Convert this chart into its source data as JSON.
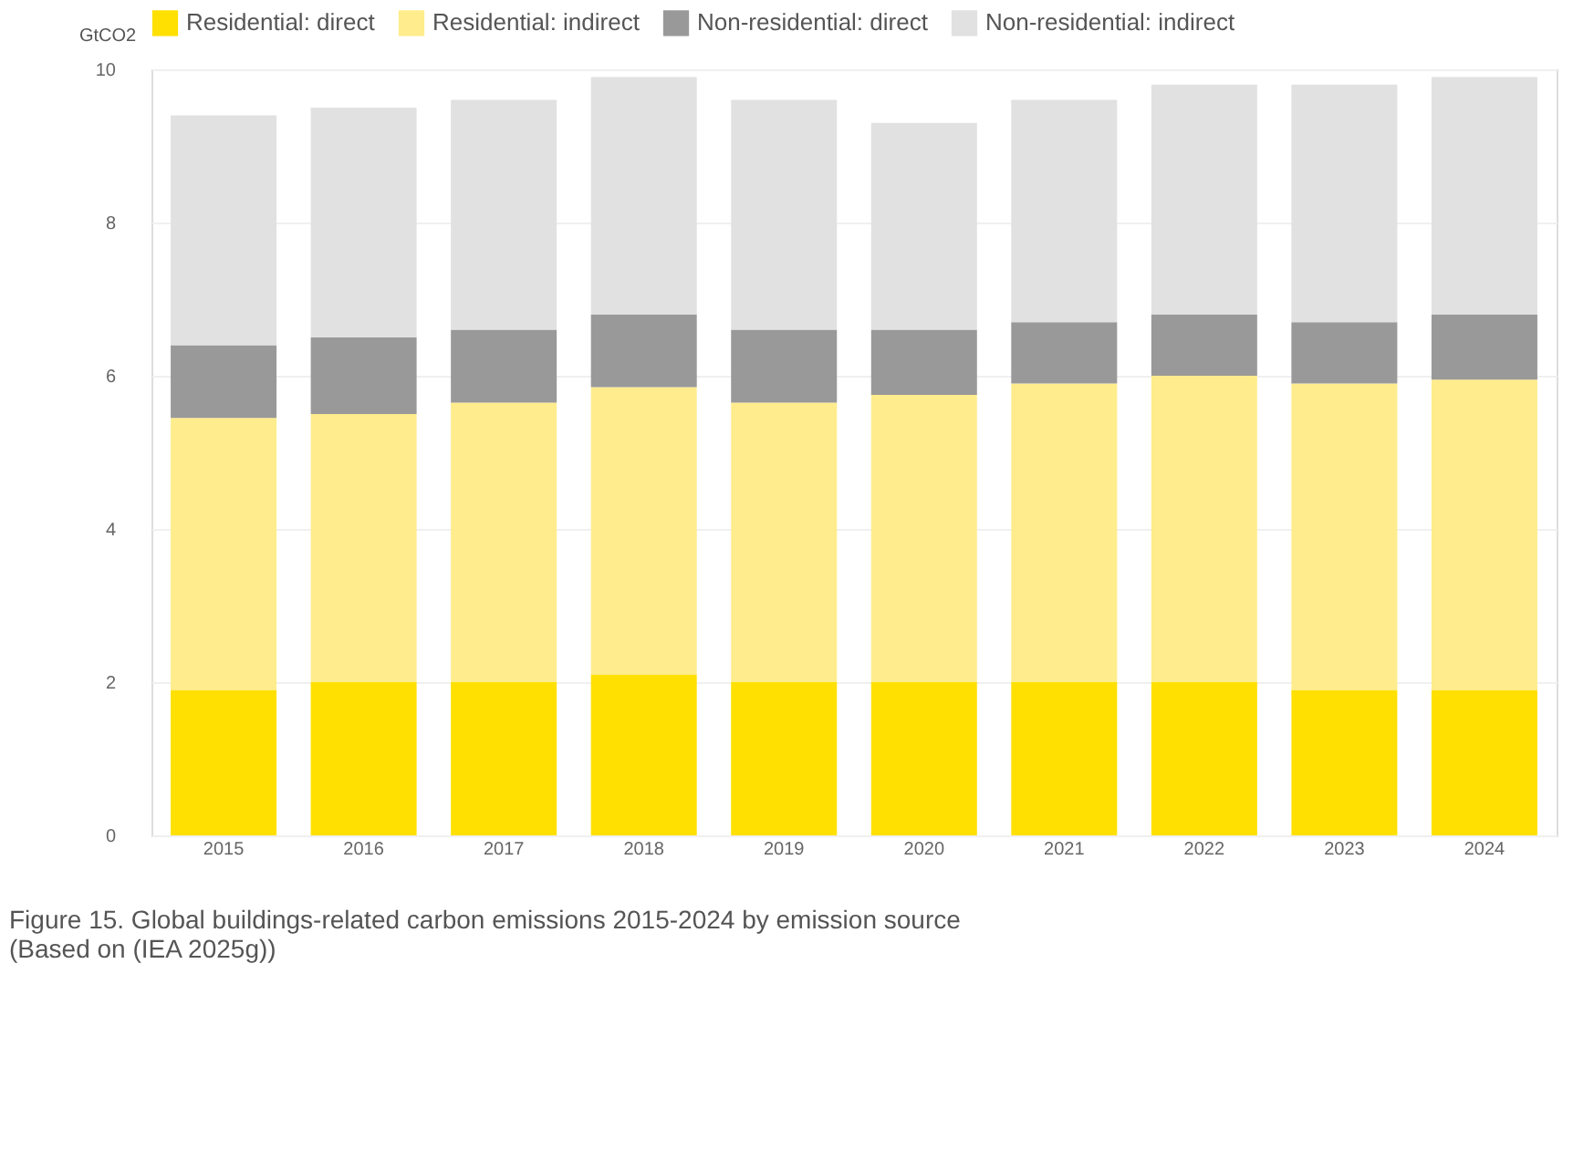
{
  "chart_data": {
    "type": "bar",
    "stacked": true,
    "ylabel": "GtCO2",
    "categories": [
      "2015",
      "2016",
      "2017",
      "2018",
      "2019",
      "2020",
      "2021",
      "2022",
      "2023",
      "2024"
    ],
    "series": [
      {
        "name": "Residential: direct",
        "color": "#ffe000",
        "values": [
          1.9,
          2.0,
          2.0,
          2.1,
          2.0,
          2.0,
          2.0,
          2.0,
          1.9,
          1.9
        ]
      },
      {
        "name": "Residential: indirect",
        "color": "#ffec8c",
        "values": [
          3.55,
          3.5,
          3.65,
          3.75,
          3.65,
          3.75,
          3.9,
          4.0,
          4.0,
          4.05
        ]
      },
      {
        "name": "Non-residential: direct",
        "color": "#999999",
        "values": [
          0.95,
          1.0,
          0.95,
          0.95,
          0.95,
          0.85,
          0.8,
          0.8,
          0.8,
          0.85
        ]
      },
      {
        "name": "Non-residential: indirect",
        "color": "#e1e1e1",
        "values": [
          3.0,
          3.0,
          3.0,
          3.1,
          3.0,
          2.7,
          2.9,
          3.0,
          3.1,
          3.1
        ]
      }
    ],
    "ylim": [
      0,
      10
    ],
    "yticks": [
      0,
      2,
      4,
      6,
      8,
      10
    ],
    "grid": "y",
    "legend": "top",
    "annotations": [
      "Figure 15. Global buildings-related carbon emissions 2015-2024 by emission source",
      "(Based on (IEA 2025g))"
    ]
  }
}
